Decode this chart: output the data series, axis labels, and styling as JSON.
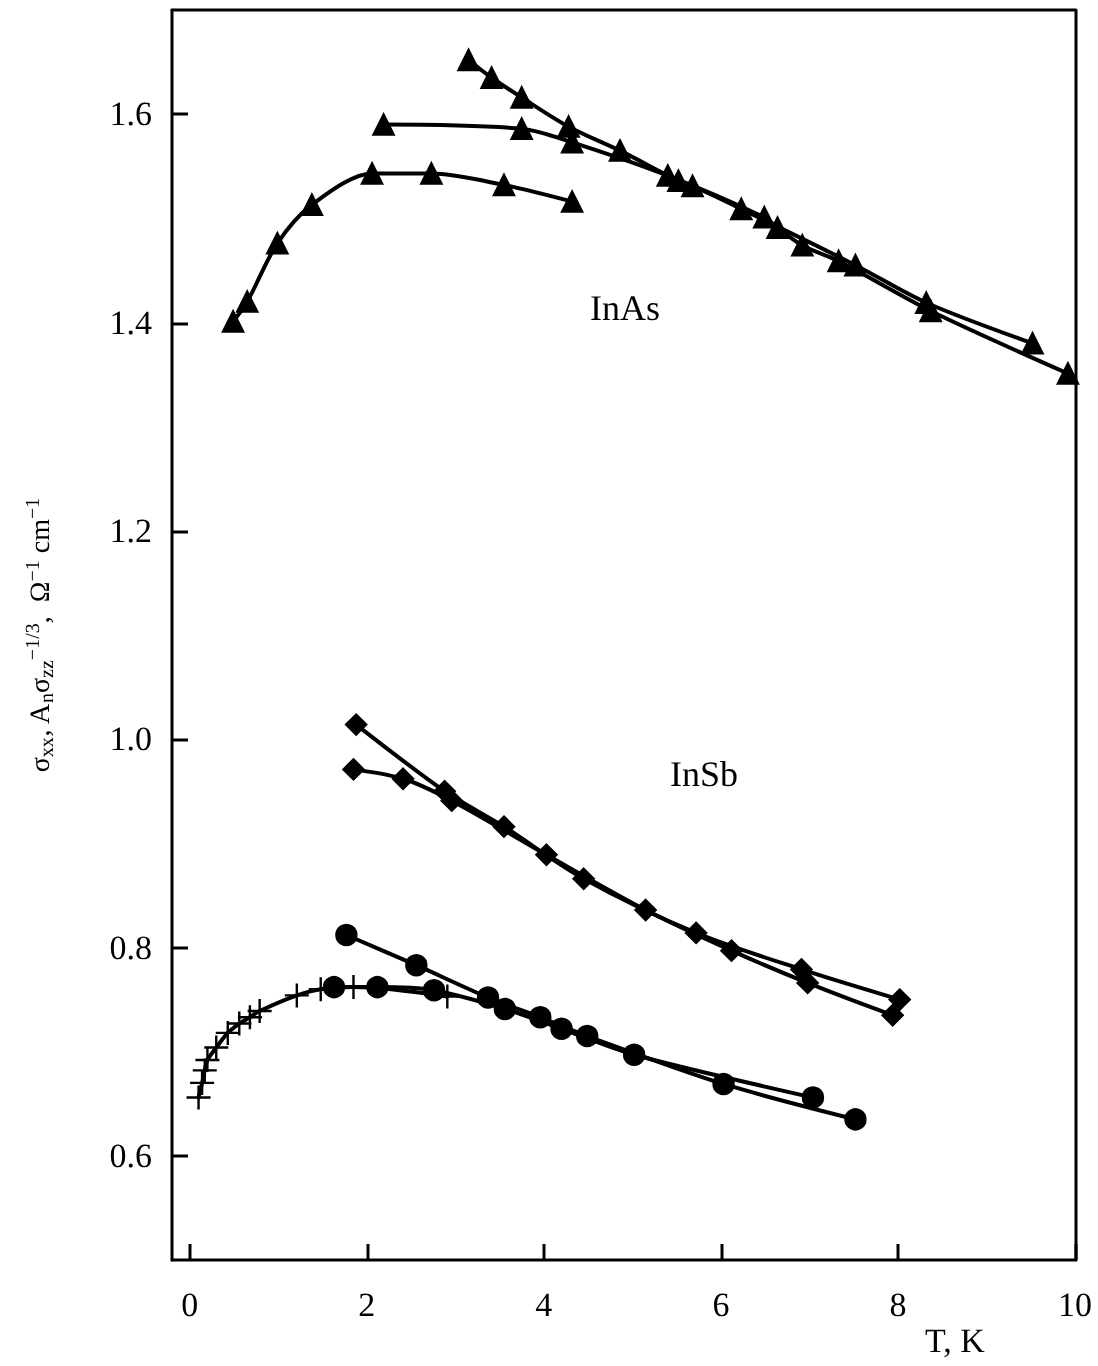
{
  "chart_data": {
    "type": "line",
    "xlabel": "T, K",
    "ylabel": "σ$_{xx}$, A$_{n}$σ$_{zz}$$^{−1/3}$,  Ω$^{−1}$ cm$^{−1}$",
    "xlim": [
      -0.2,
      10
    ],
    "xticks": [
      0,
      2,
      4,
      6,
      8,
      10
    ],
    "ylim": [
      0.5,
      1.7
    ],
    "yticks": [
      0.6,
      0.8,
      {
        "value": 1.0,
        "label": "1.0"
      },
      1.2,
      1.4,
      1.6
    ],
    "annotations": [
      "InAs",
      "InSb"
    ],
    "series": [
      {
        "color": "#000000",
        "marker": "triangle",
        "x": [
          3.15,
          3.41,
          3.75,
          4.28,
          4.86,
          5.52,
          5.68,
          6.23,
          7.52,
          8.32,
          9.52
        ],
        "values": [
          1.652,
          1.635,
          1.616,
          1.588,
          1.565,
          1.536,
          1.531,
          1.509,
          1.455,
          1.419,
          1.38
        ]
      },
      {
        "color": "#000000",
        "marker": "triangle",
        "x": [
          2.19,
          3.75,
          4.32,
          5.4,
          6.49,
          6.64,
          6.92,
          7.33,
          8.37,
          9.92
        ],
        "values": [
          1.59,
          1.586,
          1.573,
          1.541,
          1.501,
          1.491,
          1.474,
          1.459,
          1.411,
          1.351
        ]
      },
      {
        "color": "#000000",
        "marker": "triangle",
        "x": [
          0.49,
          0.65,
          0.99,
          1.38,
          2.06,
          2.73,
          3.55,
          4.32
        ],
        "values": [
          1.401,
          1.42,
          1.476,
          1.513,
          1.543,
          1.543,
          1.532,
          1.516
        ]
      },
      {
        "color": "#000000",
        "marker": "diamond",
        "x": [
          1.88,
          2.88,
          3.55,
          4.45,
          5.72,
          6.91,
          8.02
        ],
        "values": [
          1.014,
          0.95,
          0.916,
          0.866,
          0.814,
          0.779,
          0.75
        ]
      },
      {
        "color": "#000000",
        "marker": "diamond",
        "x": [
          1.85,
          2.41,
          2.96,
          4.03,
          5.15,
          6.12,
          6.98,
          7.94
        ],
        "values": [
          0.971,
          0.962,
          0.941,
          0.889,
          0.836,
          0.797,
          0.766,
          0.735
        ]
      },
      {
        "color": "#000000",
        "marker": "circle",
        "x": [
          1.77,
          2.56,
          3.37,
          3.96,
          4.49,
          6.03,
          7.52
        ],
        "values": [
          0.812,
          0.783,
          0.752,
          0.733,
          0.715,
          0.669,
          0.635
        ]
      },
      {
        "color": "#000000",
        "marker": "circle",
        "x": [
          1.63,
          2.12,
          2.76,
          3.56,
          4.2,
          5.02,
          7.04
        ],
        "values": [
          0.762,
          0.762,
          0.759,
          0.741,
          0.722,
          0.697,
          0.656
        ]
      },
      {
        "color": "#000000",
        "marker": "cross",
        "x": [
          0.1,
          0.14,
          0.17,
          0.2,
          0.3,
          0.43,
          0.56,
          0.68,
          0.79,
          1.21,
          1.48,
          1.85,
          2.91
        ],
        "values": [
          0.656,
          0.67,
          0.682,
          0.692,
          0.704,
          0.718,
          0.727,
          0.733,
          0.739,
          0.754,
          0.76,
          0.762,
          0.753
        ]
      }
    ]
  }
}
